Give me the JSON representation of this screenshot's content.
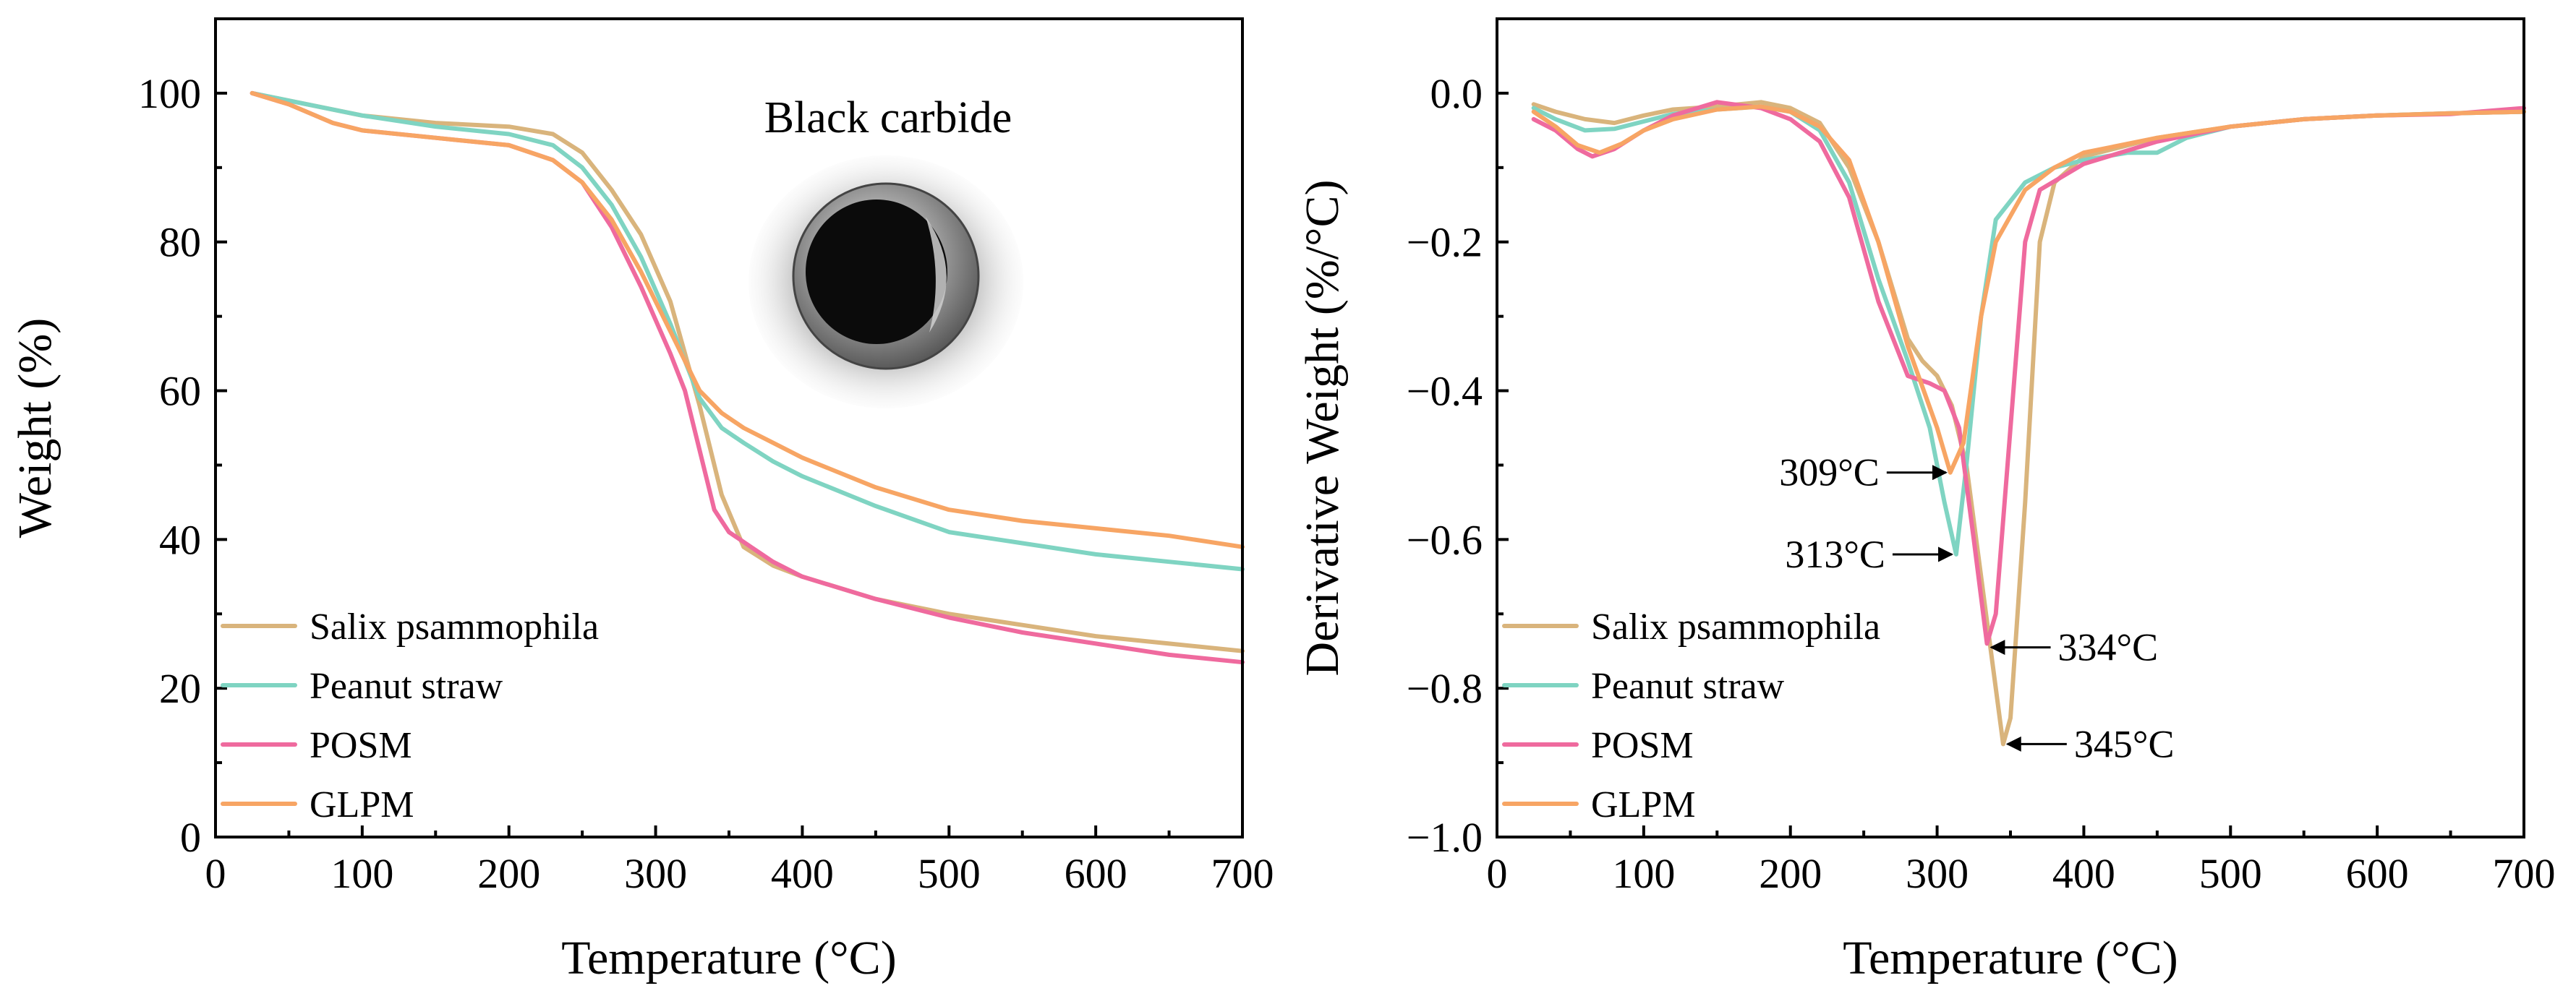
{
  "chart_data": [
    {
      "type": "line",
      "title": "",
      "xlabel": "Temperature (°C)",
      "ylabel": "Weight (%)",
      "xlim": [
        0,
        700
      ],
      "ylim": [
        0,
        110
      ],
      "xticks": [
        0,
        100,
        200,
        300,
        400,
        500,
        600,
        700
      ],
      "yticks": [
        0,
        20,
        40,
        60,
        80,
        100
      ],
      "grid": false,
      "legend": "bottom-left",
      "inset_label": "Black carbide",
      "series": [
        {
          "name": "Salix psammophila",
          "color": "#D9B47C",
          "x": [
            25,
            50,
            100,
            150,
            200,
            230,
            250,
            270,
            290,
            310,
            330,
            345,
            360,
            380,
            400,
            450,
            500,
            550,
            600,
            650,
            700
          ],
          "y": [
            100,
            99,
            97,
            96,
            95.5,
            94.5,
            92,
            87,
            81,
            72,
            58,
            46,
            39,
            36.5,
            35,
            32,
            30,
            28.5,
            27,
            26,
            25
          ]
        },
        {
          "name": "Peanut straw",
          "color": "#7FD4C2",
          "x": [
            25,
            50,
            100,
            150,
            200,
            230,
            250,
            270,
            290,
            310,
            330,
            345,
            360,
            380,
            400,
            450,
            500,
            550,
            600,
            650,
            700
          ],
          "y": [
            100,
            99,
            97,
            95.5,
            94.5,
            93,
            90,
            85,
            78,
            69,
            59,
            55,
            53,
            50.5,
            48.5,
            44.5,
            41,
            39.5,
            38,
            37,
            36
          ]
        },
        {
          "name": "POSM",
          "color": "#EF6A9E",
          "x": [
            25,
            50,
            80,
            100,
            150,
            200,
            230,
            250,
            270,
            290,
            310,
            320,
            330,
            340,
            350,
            365,
            380,
            400,
            450,
            500,
            550,
            600,
            650,
            700
          ],
          "y": [
            100,
            98.5,
            96,
            95,
            94,
            93,
            91,
            88,
            82,
            74,
            65,
            60,
            52,
            44,
            41,
            39,
            37,
            35,
            32,
            29.5,
            27.5,
            26,
            24.5,
            23.5
          ]
        },
        {
          "name": "GLPM",
          "color": "#F7A564",
          "x": [
            25,
            50,
            80,
            100,
            150,
            200,
            230,
            250,
            270,
            290,
            310,
            330,
            345,
            360,
            380,
            400,
            450,
            500,
            550,
            600,
            650,
            700
          ],
          "y": [
            100,
            98.5,
            96,
            95,
            94,
            93,
            91,
            88,
            83,
            76,
            68,
            60,
            57,
            55,
            53,
            51,
            47,
            44,
            42.5,
            41.5,
            40.5,
            39
          ]
        }
      ]
    },
    {
      "type": "line",
      "title": "",
      "xlabel": "Temperature (°C)",
      "ylabel": "Derivative Weight (%/°C)",
      "xlim": [
        0,
        700
      ],
      "ylim": [
        -1.0,
        0.1
      ],
      "xticks": [
        0,
        100,
        200,
        300,
        400,
        500,
        600,
        700
      ],
      "yticks": [
        0.0,
        -0.2,
        -0.4,
        -0.6,
        -0.8,
        -1.0
      ],
      "ytick_labels": [
        "0.0",
        "−0.2",
        "−0.4",
        "−0.6",
        "−0.8",
        "−1.0"
      ],
      "grid": false,
      "legend": "bottom-left",
      "series": [
        {
          "name": "Salix psammophila",
          "color": "#D9B47C",
          "x": [
            25,
            40,
            60,
            80,
            100,
            120,
            150,
            180,
            200,
            220,
            240,
            260,
            280,
            290,
            300,
            310,
            320,
            330,
            340,
            345,
            350,
            360,
            370,
            380,
            400,
            450,
            500,
            550,
            600,
            650,
            700
          ],
          "y": [
            -0.015,
            -0.025,
            -0.035,
            -0.04,
            -0.03,
            -0.022,
            -0.018,
            -0.012,
            -0.02,
            -0.04,
            -0.1,
            -0.2,
            -0.33,
            -0.36,
            -0.38,
            -0.42,
            -0.5,
            -0.65,
            -0.8,
            -0.875,
            -0.84,
            -0.55,
            -0.2,
            -0.12,
            -0.085,
            -0.06,
            -0.045,
            -0.035,
            -0.03,
            -0.027,
            -0.025
          ]
        },
        {
          "name": "Peanut straw",
          "color": "#7FD4C2",
          "x": [
            25,
            40,
            60,
            80,
            100,
            120,
            150,
            180,
            200,
            220,
            240,
            260,
            280,
            295,
            305,
            313,
            320,
            330,
            340,
            360,
            380,
            400,
            430,
            450,
            470,
            500,
            550,
            600,
            650,
            700
          ],
          "y": [
            -0.02,
            -0.035,
            -0.05,
            -0.048,
            -0.038,
            -0.028,
            -0.022,
            -0.018,
            -0.025,
            -0.05,
            -0.12,
            -0.25,
            -0.36,
            -0.45,
            -0.55,
            -0.62,
            -0.5,
            -0.3,
            -0.17,
            -0.12,
            -0.1,
            -0.09,
            -0.08,
            -0.08,
            -0.06,
            -0.045,
            -0.035,
            -0.03,
            -0.027,
            -0.025
          ]
        },
        {
          "name": "POSM",
          "color": "#EF6A9E",
          "x": [
            25,
            40,
            55,
            65,
            80,
            100,
            120,
            150,
            180,
            200,
            220,
            240,
            260,
            280,
            295,
            305,
            315,
            325,
            334,
            340,
            350,
            360,
            370,
            400,
            450,
            500,
            550,
            600,
            650,
            700
          ],
          "y": [
            -0.035,
            -0.05,
            -0.075,
            -0.085,
            -0.075,
            -0.05,
            -0.03,
            -0.012,
            -0.02,
            -0.035,
            -0.065,
            -0.14,
            -0.28,
            -0.38,
            -0.39,
            -0.4,
            -0.45,
            -0.6,
            -0.74,
            -0.7,
            -0.45,
            -0.2,
            -0.13,
            -0.095,
            -0.065,
            -0.045,
            -0.035,
            -0.03,
            -0.028,
            -0.02
          ]
        },
        {
          "name": "GLPM",
          "color": "#F7A564",
          "x": [
            25,
            40,
            55,
            70,
            85,
            100,
            120,
            150,
            180,
            200,
            220,
            240,
            260,
            280,
            300,
            309,
            318,
            330,
            340,
            360,
            380,
            400,
            450,
            500,
            550,
            600,
            650,
            700
          ],
          "y": [
            -0.025,
            -0.045,
            -0.07,
            -0.08,
            -0.068,
            -0.05,
            -0.035,
            -0.022,
            -0.018,
            -0.025,
            -0.045,
            -0.09,
            -0.2,
            -0.34,
            -0.45,
            -0.51,
            -0.47,
            -0.3,
            -0.2,
            -0.13,
            -0.1,
            -0.08,
            -0.06,
            -0.045,
            -0.035,
            -0.03,
            -0.027,
            -0.025
          ]
        }
      ],
      "annotations": [
        {
          "text": "309°C",
          "x": 309,
          "y": -0.51,
          "side": "left"
        },
        {
          "text": "313°C",
          "x": 313,
          "y": -0.62,
          "side": "left"
        },
        {
          "text": "334°C",
          "x": 334,
          "y": -0.745,
          "side": "right"
        },
        {
          "text": "345°C",
          "x": 345,
          "y": -0.875,
          "side": "right"
        }
      ]
    }
  ]
}
